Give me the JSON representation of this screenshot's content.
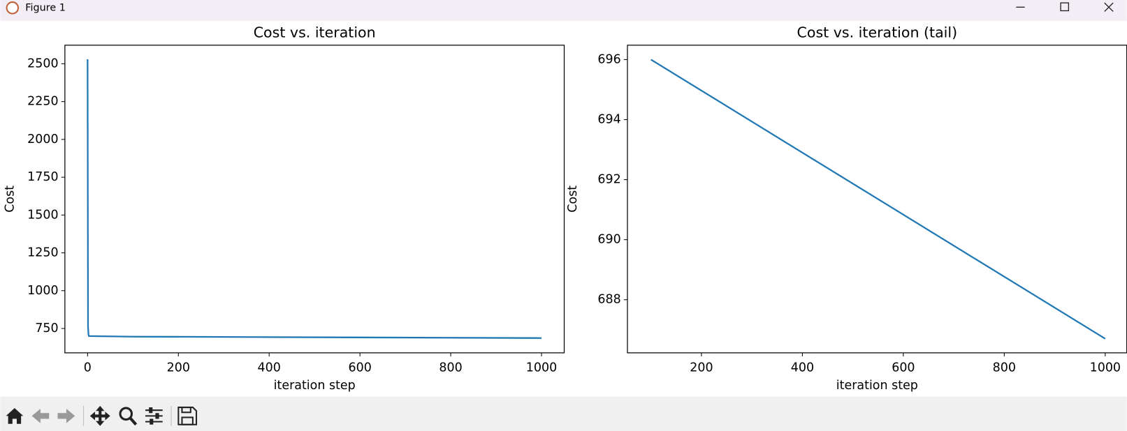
{
  "window": {
    "title": "Figure 1"
  },
  "chart_data": [
    {
      "type": "line",
      "title": "Cost vs. iteration",
      "x_label": "iteration step",
      "y_label": "Cost",
      "x": [
        0,
        1,
        2,
        3,
        100,
        1000
      ],
      "series": [
        {
          "color": "#1f77b4",
          "values": [
            2530,
            760,
            710,
            700,
            696,
            686.7
          ]
        }
      ],
      "xlim": [
        -50,
        1050
      ],
      "ylim": [
        589,
        2623
      ],
      "xticks": [
        0,
        200,
        400,
        600,
        800,
        1000
      ],
      "yticks": [
        750,
        1000,
        1250,
        1500,
        1750,
        2000,
        2250,
        2500
      ]
    },
    {
      "type": "line",
      "title": "Cost vs. iteration (tail)",
      "x_label": "iteration step",
      "y_label": "Cost",
      "x": [
        100,
        1000
      ],
      "series": [
        {
          "color": "#1f77b4",
          "values": [
            696,
            686.7
          ]
        }
      ],
      "xlim": [
        53.4,
        1042.7
      ],
      "ylim": [
        686.23,
        696.48
      ],
      "xticks": [
        200,
        400,
        600,
        800,
        1000
      ],
      "yticks": [
        688,
        690,
        692,
        694,
        696
      ]
    }
  ]
}
